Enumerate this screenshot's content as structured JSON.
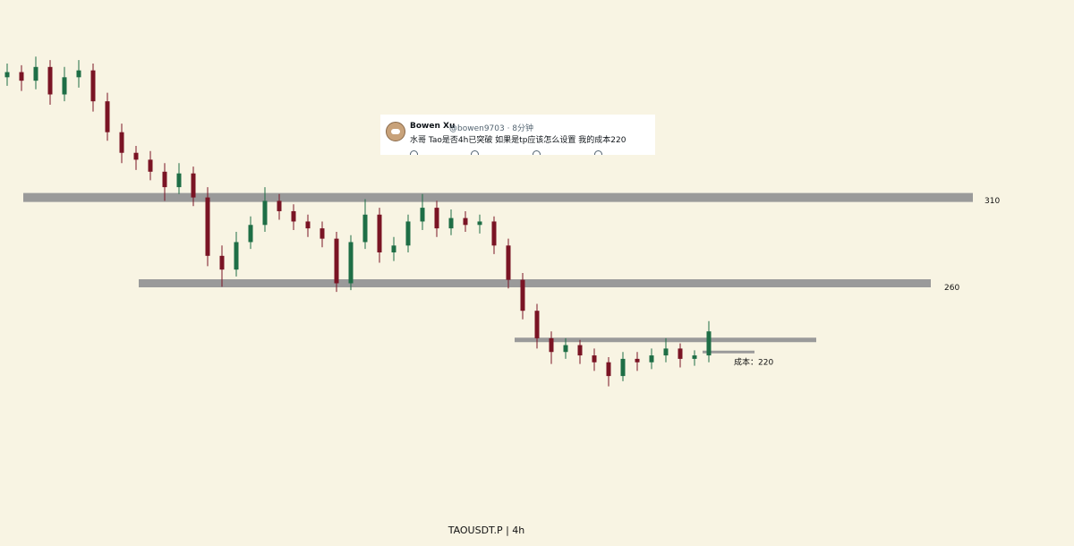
{
  "chart_data": {
    "type": "candlestick",
    "title": "TAOUSDT.P  |  4h",
    "ylim": [
      107,
      425
    ],
    "up_color": "#1e6e46",
    "down_color": "#7a1424",
    "open": [
      380,
      383,
      378,
      386,
      370,
      380,
      384,
      366,
      348,
      336,
      332,
      325,
      316,
      324,
      310,
      276,
      268,
      284,
      294,
      308,
      302,
      296,
      292,
      286,
      260,
      284,
      300,
      278,
      282,
      296,
      304,
      292,
      298,
      294,
      296,
      282,
      262,
      244,
      228,
      220,
      224,
      218,
      214,
      206,
      216,
      214,
      218,
      222,
      216,
      218
    ],
    "high": [
      388,
      387,
      392,
      390,
      386,
      390,
      388,
      371,
      353,
      340,
      337,
      330,
      330,
      328,
      316,
      282,
      290,
      299,
      316,
      312,
      306,
      300,
      296,
      290,
      288,
      309,
      304,
      287,
      300,
      312,
      308,
      303,
      302,
      300,
      299,
      286,
      266,
      248,
      232,
      228,
      227,
      222,
      217,
      220,
      220,
      222,
      228,
      225,
      221,
      238
    ],
    "low": [
      375,
      372,
      373,
      364,
      366,
      374,
      360,
      343,
      330,
      326,
      320,
      308,
      312,
      305,
      270,
      258,
      264,
      280,
      290,
      297,
      291,
      287,
      281,
      255,
      256,
      280,
      272,
      273,
      278,
      291,
      287,
      288,
      290,
      289,
      277,
      257,
      239,
      222,
      213,
      216,
      213,
      209,
      200,
      203,
      209,
      210,
      214,
      211,
      212,
      214
    ],
    "close": [
      383,
      378,
      386,
      370,
      380,
      384,
      366,
      348,
      336,
      332,
      325,
      316,
      324,
      310,
      276,
      268,
      284,
      294,
      308,
      302,
      296,
      292,
      286,
      260,
      284,
      300,
      278,
      282,
      296,
      304,
      292,
      298,
      294,
      296,
      282,
      262,
      244,
      228,
      220,
      224,
      218,
      214,
      206,
      216,
      214,
      218,
      222,
      216,
      218,
      232
    ],
    "levels": [
      {
        "value": 310
      },
      {
        "value": 260
      },
      {
        "value": 227
      },
      {
        "value": 220,
        "label": "成本：220"
      }
    ],
    "level_color": "#9a9a9a",
    "tweet": {
      "name": "Bowen Xu",
      "handle": "@bowen9703 · 8分钟",
      "text": "水哥 Tao是否4h已突破 如果是tp应该怎么设置 我的成本220"
    }
  }
}
